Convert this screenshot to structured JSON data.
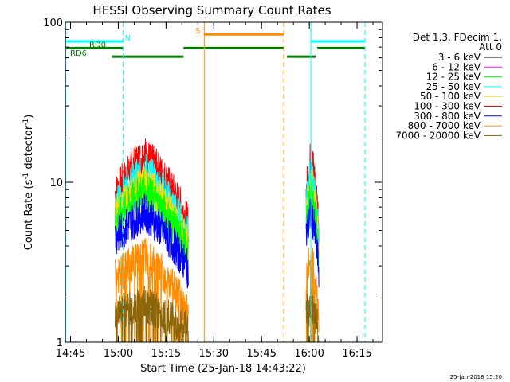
{
  "chart_data": {
    "type": "line",
    "title": "HESSI Observing Summary Count Rates",
    "xlabel": "Start Time (25-Jan-18 14:43:22)",
    "ylabel": "Count Rate (s",
    "ylabel_sup": "-1",
    "ylabel_mid": " detector",
    "ylabel_sup2": "-1",
    "ylabel_end": ")",
    "yscale": "log",
    "ylim": [
      1,
      100
    ],
    "xlim": [
      "14:43:22",
      "16:23:00"
    ],
    "xticks": [
      "14:45",
      "15:00",
      "15:15",
      "15:30",
      "15:45",
      "16:00",
      "16:15"
    ],
    "yticks": [
      {
        "value": 1,
        "label": "1"
      },
      {
        "value": 10,
        "label": "10"
      },
      {
        "value": 100,
        "label": "100"
      }
    ],
    "legend": {
      "placement": "right",
      "header": [
        "Det 1,3, FDecim 1,",
        "Att 0"
      ],
      "entries": [
        {
          "name": "3 - 6 keV",
          "color": "#000000"
        },
        {
          "name": "6 - 12 keV",
          "color": "#ff00ff"
        },
        {
          "name": "12 - 25 keV",
          "color": "#00ff00"
        },
        {
          "name": "25 - 50 keV",
          "color": "#00ffff"
        },
        {
          "name": "50 - 100 keV",
          "color": "#ffd700"
        },
        {
          "name": "100 - 300 keV",
          "color": "#ff0000"
        },
        {
          "name": "300 - 800 keV",
          "color": "#0000ff"
        },
        {
          "name": "800 - 7000 keV",
          "color": "#ff8c00"
        },
        {
          "name": "7000 - 20000 keV",
          "color": "#8b6508"
        }
      ]
    },
    "data_segments": [
      {
        "start": "14:59:00",
        "end": "15:22:00"
      },
      {
        "start": "15:59:00",
        "end": "16:03:00"
      }
    ],
    "series_profile": [
      {
        "name": "100 - 300 keV",
        "peak": 15,
        "start": 8.5,
        "end": 5.5
      },
      {
        "name": "25 - 50 keV",
        "peak": 12,
        "start": 7,
        "end": 4.5
      },
      {
        "name": "50 - 100 keV",
        "peak": 10,
        "start": 6,
        "end": 4
      },
      {
        "name": "12 - 25 keV",
        "peak": 9,
        "start": 5.5,
        "end": 3.5
      },
      {
        "name": "300 - 800 keV",
        "peak": 6.5,
        "start": 4.5,
        "end": 2.8
      },
      {
        "name": "800 - 7000 keV",
        "peak": 3.5,
        "start": 2.5,
        "end": 1.5
      },
      {
        "name": "7000 - 20000 keV",
        "peak": 1.7,
        "start": 1.5,
        "end": 1.2
      }
    ],
    "flags": [
      {
        "name": "N",
        "color": "#00ffff",
        "value": 76,
        "intervals": [
          [
            "14:43:22",
            "15:01:30"
          ],
          [
            "16:00:30",
            "16:17:30"
          ]
        ],
        "label": "N",
        "label_at": "15:03:00"
      },
      {
        "name": "RD0",
        "color": "#008000",
        "value": 69,
        "intervals": [
          [
            "14:43:22",
            "15:01:30"
          ],
          [
            "15:20:30",
            "15:52:00"
          ],
          [
            "16:02:30",
            "16:17:30"
          ]
        ],
        "label": "RD0",
        "label_at": "14:53:30"
      },
      {
        "name": "RD6",
        "color": "#008000",
        "value": 61,
        "intervals": [
          [
            "14:58:00",
            "15:20:30"
          ],
          [
            "15:53:00",
            "16:02:00"
          ]
        ],
        "label": "RD6",
        "label_at": "14:47:30"
      },
      {
        "name": "S",
        "color": "#ff8c00",
        "value": 84,
        "intervals": [
          [
            "15:27:00",
            "15:52:00"
          ]
        ],
        "label": "S",
        "label_at": "15:25:00"
      }
    ],
    "markers": [
      {
        "time": "14:43:30",
        "color": "#00ffff",
        "style": "solid"
      },
      {
        "time": "15:01:30",
        "color": "#00ffff",
        "style": "dashed"
      },
      {
        "time": "15:27:00",
        "color": "#ff8c00",
        "style": "solid"
      },
      {
        "time": "15:52:00",
        "color": "#ff8c00",
        "style": "dashed"
      },
      {
        "time": "16:00:30",
        "color": "#00ffff",
        "style": "solid"
      },
      {
        "time": "16:17:30",
        "color": "#00ffff",
        "style": "dashed"
      }
    ]
  },
  "footer": {
    "timestamp": "25-Jan-2018 15:20"
  }
}
